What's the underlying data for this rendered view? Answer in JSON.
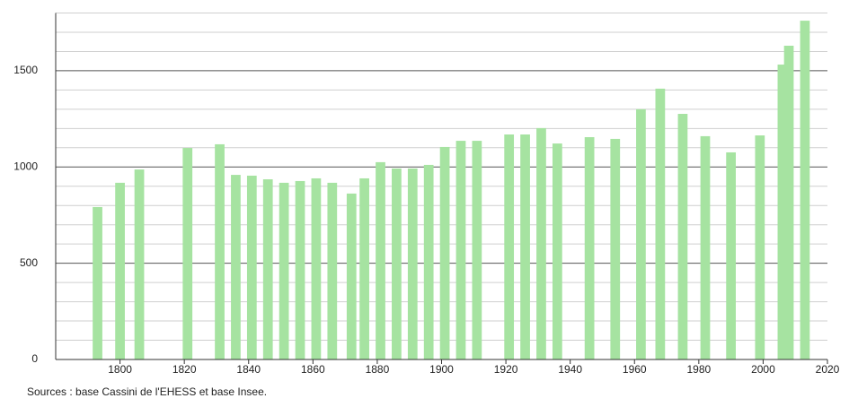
{
  "chart_data": {
    "type": "bar",
    "x": [
      1793,
      1800,
      1806,
      1821,
      1831,
      1836,
      1841,
      1846,
      1851,
      1856,
      1861,
      1866,
      1872,
      1876,
      1881,
      1886,
      1891,
      1896,
      1901,
      1906,
      1911,
      1921,
      1926,
      1931,
      1936,
      1946,
      1954,
      1962,
      1968,
      1975,
      1982,
      1990,
      1999,
      2006,
      2008,
      2013
    ],
    "values": [
      792,
      918,
      987,
      1099,
      1118,
      959,
      955,
      936,
      918,
      927,
      941,
      918,
      862,
      941,
      1025,
      992,
      992,
      1011,
      1104,
      1136,
      1136,
      1169,
      1169,
      1202,
      1122,
      1155,
      1146,
      1300,
      1407,
      1276,
      1160,
      1076,
      1164,
      1532,
      1630,
      1760
    ],
    "color": "#a6e3a1",
    "xlim": [
      1780,
      2020
    ],
    "xticks": [
      1800,
      1820,
      1840,
      1860,
      1880,
      1900,
      1920,
      1940,
      1960,
      1980,
      2000,
      2020
    ],
    "ylim": [
      0,
      1800
    ],
    "yticks": [
      0,
      500,
      1000,
      1500
    ],
    "minor_yticks": [
      100,
      200,
      300,
      400,
      600,
      700,
      800,
      900,
      1100,
      1200,
      1300,
      1400,
      1600,
      1700,
      1800
    ],
    "grid": true,
    "source": "Sources : base Cassini de l'EHESS et base Insee."
  }
}
